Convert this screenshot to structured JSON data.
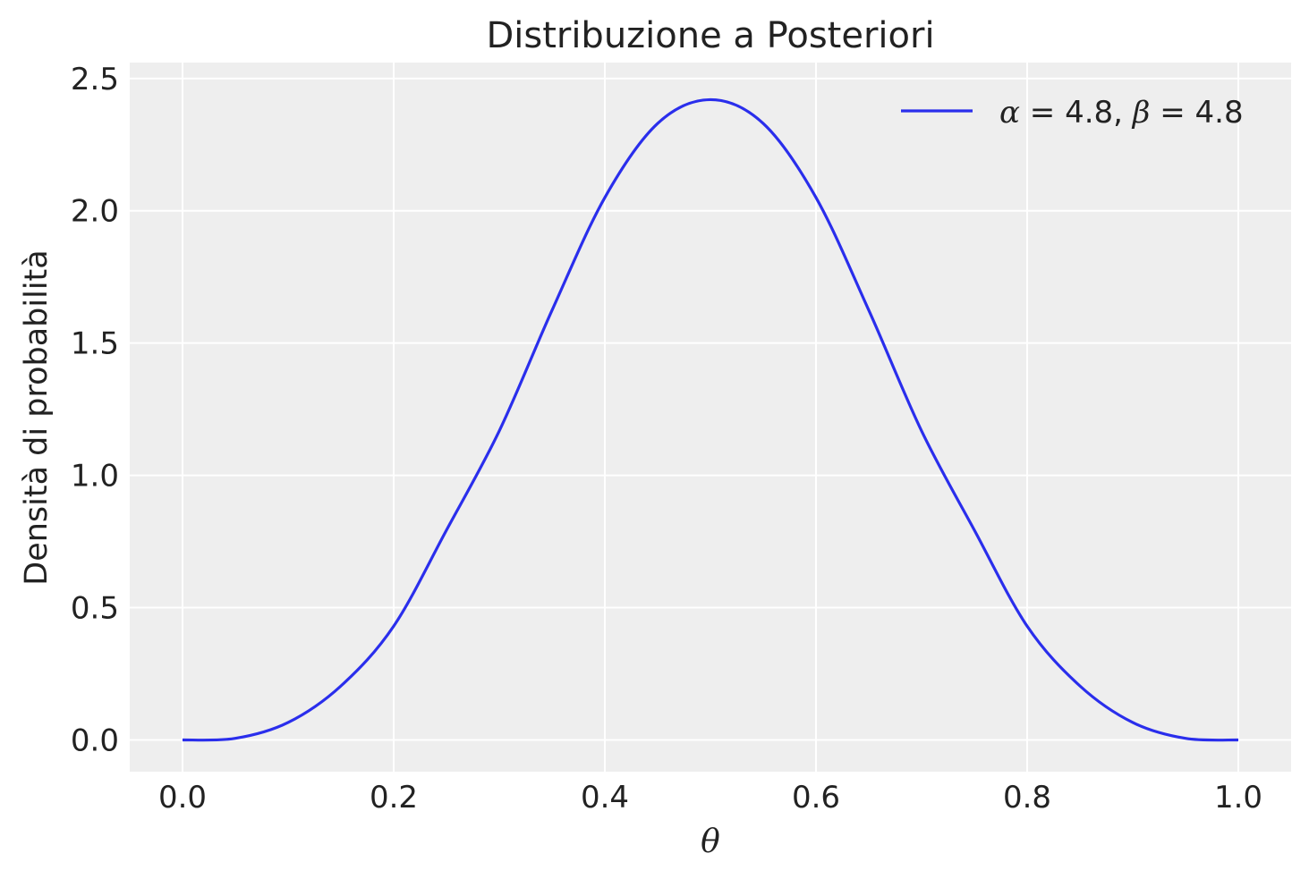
{
  "chart_data": {
    "type": "line",
    "title": "Distribuzione a Posteriori",
    "xlabel": "θ",
    "ylabel": "Densità di probabilità",
    "xlim": [
      -0.05,
      1.05
    ],
    "ylim": [
      -0.12,
      2.56
    ],
    "x_ticks": [
      "0.0",
      "0.2",
      "0.4",
      "0.6",
      "0.8",
      "1.0"
    ],
    "y_ticks": [
      "0.0",
      "0.5",
      "1.0",
      "1.5",
      "2.0",
      "2.5"
    ],
    "grid": true,
    "legend_position": "top-right",
    "series": [
      {
        "name": "α = 4.8, β = 4.8",
        "name_parts": {
          "a_sym": "α",
          "a_val": " = 4.8, ",
          "b_sym": "β",
          "b_val": " = 4.8"
        },
        "color": "#2a2eec",
        "alpha": 4.8,
        "beta": 4.8,
        "x": [
          0.0,
          0.05,
          0.1,
          0.15,
          0.2,
          0.25,
          0.3,
          0.35,
          0.4,
          0.45,
          0.5,
          0.55,
          0.6,
          0.65,
          0.7,
          0.75,
          0.8,
          0.85,
          0.9,
          0.95,
          1.0
        ],
        "y": [
          0.0,
          0.006,
          0.066,
          0.204,
          0.43,
          0.793,
          1.168,
          1.624,
          2.05,
          2.33,
          2.42,
          2.33,
          2.05,
          1.624,
          1.168,
          0.793,
          0.43,
          0.204,
          0.066,
          0.006,
          0.0
        ]
      }
    ]
  }
}
